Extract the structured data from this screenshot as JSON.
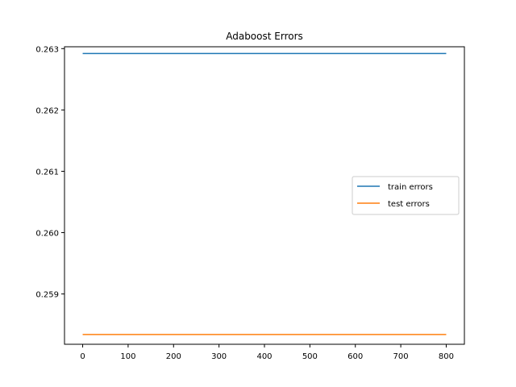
{
  "chart_data": {
    "type": "line",
    "title": "Adaboost Errors",
    "xlabel": "",
    "ylabel": "",
    "xlim": [
      -40,
      840
    ],
    "ylim": [
      0.25818,
      0.26303
    ],
    "x_ticks": [
      0,
      100,
      200,
      300,
      400,
      500,
      600,
      700,
      800
    ],
    "y_ticks": [
      0.259,
      0.26,
      0.261,
      0.262,
      0.263
    ],
    "y_tick_labels": [
      "0.259",
      "0.260",
      "0.261",
      "0.262",
      "0.263"
    ],
    "grid": false,
    "legend_position": "center-right",
    "series": [
      {
        "name": "train errors",
        "color": "#1f77b4",
        "x": [
          0,
          800
        ],
        "y": [
          0.26292,
          0.26292
        ]
      },
      {
        "name": "test errors",
        "color": "#ff7f0e",
        "x": [
          0,
          800
        ],
        "y": [
          0.25834,
          0.25834
        ]
      }
    ]
  }
}
